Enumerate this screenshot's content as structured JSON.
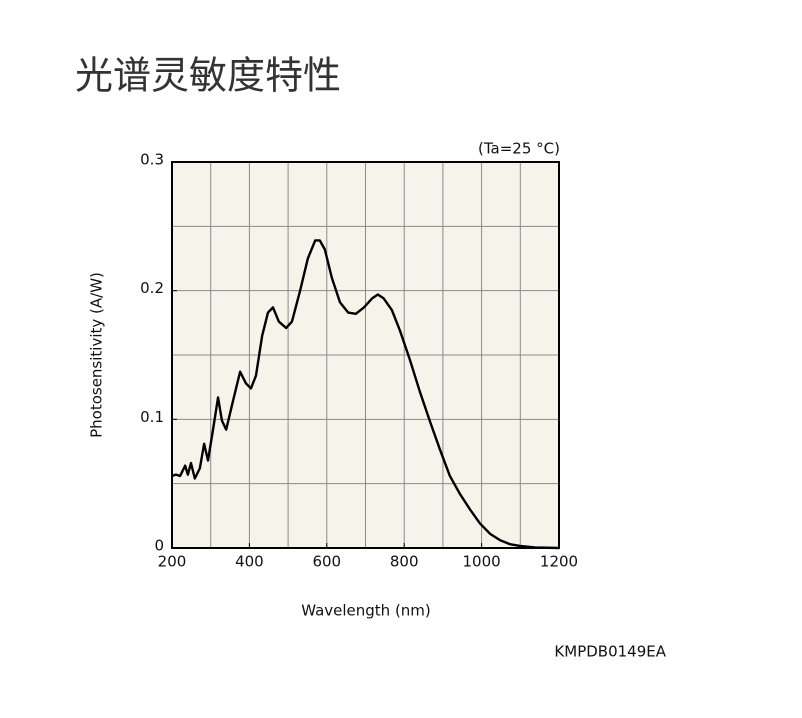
{
  "chart_data": {
    "type": "line",
    "title": "光谱灵敏度特性",
    "annotation": "(Ta=25 °C)",
    "footnote": "KMPDB0149EA",
    "xlabel": "Wavelength (nm)",
    "ylabel": "Photosensitivity (A/W)",
    "xlim": [
      200,
      1200
    ],
    "ylim": [
      0,
      0.3
    ],
    "xticks": [
      200,
      400,
      600,
      800,
      1000,
      1200
    ],
    "yticks": [
      0,
      0.1,
      0.2,
      0.3
    ],
    "xgrid": [
      200,
      300,
      400,
      500,
      600,
      700,
      800,
      900,
      1000,
      1100,
      1200
    ],
    "ygrid": [
      0,
      0.05,
      0.1,
      0.15,
      0.2,
      0.25,
      0.3
    ],
    "grid": true,
    "background": "#f6f4ea",
    "series": [
      {
        "name": "Photosensitivity",
        "color": "#000000",
        "x": [
          200,
          210,
          221,
          234,
          241,
          249,
          259,
          272,
          283,
          293,
          306,
          319,
          329,
          340,
          355,
          376,
          391,
          404,
          417,
          433,
          448,
          461,
          476,
          495,
          510,
          531,
          551,
          570,
          582,
          595,
          613,
          634,
          655,
          675,
          696,
          717,
          732,
          747,
          768,
          789,
          815,
          841,
          867,
          893,
          918,
          944,
          970,
          996,
          1022,
          1048,
          1073,
          1099,
          1138,
          1200
        ],
        "values": [
          0.056,
          0.057,
          0.056,
          0.064,
          0.057,
          0.066,
          0.054,
          0.062,
          0.081,
          0.068,
          0.092,
          0.117,
          0.099,
          0.092,
          0.111,
          0.137,
          0.128,
          0.124,
          0.134,
          0.165,
          0.183,
          0.187,
          0.176,
          0.171,
          0.176,
          0.2,
          0.225,
          0.239,
          0.239,
          0.232,
          0.21,
          0.191,
          0.183,
          0.182,
          0.187,
          0.194,
          0.197,
          0.194,
          0.185,
          0.169,
          0.146,
          0.121,
          0.098,
          0.076,
          0.056,
          0.042,
          0.03,
          0.019,
          0.011,
          0.006,
          0.003,
          0.0016,
          0.0004,
          0
        ]
      }
    ]
  }
}
